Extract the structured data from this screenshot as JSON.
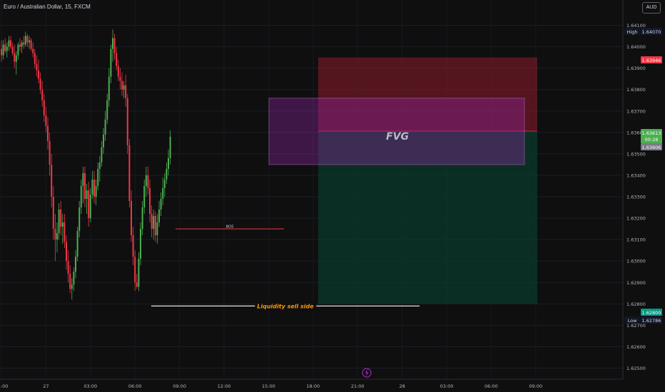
{
  "header": {
    "title": "Euro / Australian Dollar, 15, FXCM",
    "currency": "AUD"
  },
  "annotations": {
    "fvg": "FVG",
    "bos": "BOS",
    "liquidity": "Liquidity sell side"
  },
  "axis_badges": {
    "high_label": "High",
    "high_value": "1.64070",
    "target_value": "1.63946",
    "price_value": "1.63613",
    "countdown": "00:28",
    "entry_value": "1.63606",
    "stop_value": "1.62800",
    "low_label": "Low",
    "low_value": "1.62786"
  },
  "colors": {
    "up": "#4caf50",
    "down": "#f23645",
    "background": "#0f0f10",
    "fvg_zone": "#9c27b0",
    "target_zone": "#8e1b2c",
    "stop_zone": "#0b3a2b",
    "liquidity_text": "#ff9800"
  },
  "chart_data": {
    "type": "candlestick",
    "title": "Euro / Australian Dollar, 15, FXCM",
    "y_ticks": [
      "1.64100",
      "1.64000",
      "1.63900",
      "1.63800",
      "1.63700",
      "1.63600",
      "1.63500",
      "1.63400",
      "1.63300",
      "1.63200",
      "1.63100",
      "1.63000",
      "1.62900",
      "1.62800",
      "1.62700",
      "1.62600",
      "1.62500"
    ],
    "x_ticks": [
      "21:00",
      "27",
      "03:00",
      "06:00",
      "09:00",
      "12:00",
      "15:00",
      "18:00",
      "21:00",
      "28",
      "03:00",
      "06:00",
      "09:00"
    ],
    "ylim": [
      1.625,
      1.6414
    ],
    "x_range_bars": [
      -1,
      340
    ],
    "x_tick_bars": [
      0,
      24,
      48,
      72,
      96,
      120,
      144,
      168,
      192,
      216,
      240,
      264,
      288
    ],
    "candles": [
      [
        1.6399,
        1.6403,
        1.6393,
        1.6396
      ],
      [
        1.6396,
        1.6403,
        1.6394,
        1.6401
      ],
      [
        1.6401,
        1.6404,
        1.6397,
        1.6398
      ],
      [
        1.6398,
        1.6402,
        1.6395,
        1.64
      ],
      [
        1.64,
        1.6405,
        1.6398,
        1.6403
      ],
      [
        1.6403,
        1.6405,
        1.6399,
        1.64
      ],
      [
        1.64,
        1.6402,
        1.6396,
        1.6397
      ],
      [
        1.6397,
        1.6401,
        1.639,
        1.6393
      ],
      [
        1.6393,
        1.6398,
        1.6387,
        1.6396
      ],
      [
        1.6396,
        1.6402,
        1.6394,
        1.6401
      ],
      [
        1.6401,
        1.6404,
        1.6398,
        1.64
      ],
      [
        1.64,
        1.6403,
        1.6397,
        1.6402
      ],
      [
        1.6402,
        1.6405,
        1.6399,
        1.6401
      ],
      [
        1.6401,
        1.6407,
        1.64,
        1.6405
      ],
      [
        1.6405,
        1.6406,
        1.64,
        1.6402
      ],
      [
        1.6402,
        1.6405,
        1.6399,
        1.6403
      ],
      [
        1.6403,
        1.6404,
        1.6398,
        1.6399
      ],
      [
        1.6399,
        1.6402,
        1.6395,
        1.6397
      ],
      [
        1.6397,
        1.6399,
        1.639,
        1.6392
      ],
      [
        1.6392,
        1.6396,
        1.6386,
        1.6389
      ],
      [
        1.6389,
        1.6394,
        1.6383,
        1.6385
      ],
      [
        1.6385,
        1.6388,
        1.6378,
        1.638
      ],
      [
        1.638,
        1.6384,
        1.6372,
        1.6375
      ],
      [
        1.6375,
        1.6378,
        1.6365,
        1.6368
      ],
      [
        1.6368,
        1.6372,
        1.636,
        1.6363
      ],
      [
        1.6363,
        1.6367,
        1.6352,
        1.6356
      ],
      [
        1.6356,
        1.636,
        1.634,
        1.6345
      ],
      [
        1.6345,
        1.635,
        1.6325,
        1.633
      ],
      [
        1.633,
        1.6335,
        1.631,
        1.6315
      ],
      [
        1.6315,
        1.6322,
        1.63,
        1.631
      ],
      [
        1.631,
        1.6318,
        1.6304,
        1.6313
      ],
      [
        1.6313,
        1.6327,
        1.631,
        1.6324
      ],
      [
        1.6324,
        1.6328,
        1.6312,
        1.6316
      ],
      [
        1.6316,
        1.6322,
        1.6308,
        1.6318
      ],
      [
        1.6318,
        1.6322,
        1.6306,
        1.6309
      ],
      [
        1.6309,
        1.6312,
        1.6296,
        1.63
      ],
      [
        1.63,
        1.6305,
        1.629,
        1.6294
      ],
      [
        1.6294,
        1.6298,
        1.6285,
        1.6287
      ],
      [
        1.6287,
        1.6292,
        1.6282,
        1.6289
      ],
      [
        1.6289,
        1.6297,
        1.6286,
        1.6295
      ],
      [
        1.6295,
        1.6305,
        1.6292,
        1.6302
      ],
      [
        1.6302,
        1.6316,
        1.63,
        1.6314
      ],
      [
        1.6314,
        1.6328,
        1.6311,
        1.6325
      ],
      [
        1.6325,
        1.6338,
        1.6322,
        1.6335
      ],
      [
        1.6335,
        1.6344,
        1.6327,
        1.6341
      ],
      [
        1.6341,
        1.6344,
        1.6325,
        1.6329
      ],
      [
        1.6329,
        1.6336,
        1.6322,
        1.6333
      ],
      [
        1.6333,
        1.6337,
        1.6316,
        1.632
      ],
      [
        1.632,
        1.6334,
        1.6318,
        1.6331
      ],
      [
        1.6331,
        1.6342,
        1.6329,
        1.6338
      ],
      [
        1.6338,
        1.6342,
        1.6327,
        1.633
      ],
      [
        1.633,
        1.6338,
        1.6326,
        1.6335
      ],
      [
        1.6335,
        1.6346,
        1.6333,
        1.6343
      ],
      [
        1.6343,
        1.6349,
        1.6337,
        1.6346
      ],
      [
        1.6346,
        1.6356,
        1.6344,
        1.6353
      ],
      [
        1.6353,
        1.6362,
        1.635,
        1.6359
      ],
      [
        1.6359,
        1.637,
        1.6356,
        1.6366
      ],
      [
        1.6366,
        1.6378,
        1.6364,
        1.6375
      ],
      [
        1.6375,
        1.639,
        1.6372,
        1.6386
      ],
      [
        1.6386,
        1.6401,
        1.6383,
        1.6399
      ],
      [
        1.6399,
        1.6408,
        1.6393,
        1.6404
      ],
      [
        1.6404,
        1.6406,
        1.6394,
        1.6397
      ],
      [
        1.6397,
        1.64,
        1.6389,
        1.6391
      ],
      [
        1.6391,
        1.6394,
        1.6384,
        1.6386
      ],
      [
        1.6386,
        1.639,
        1.638,
        1.6384
      ],
      [
        1.6384,
        1.6388,
        1.6377,
        1.638
      ],
      [
        1.638,
        1.6384,
        1.6376,
        1.6382
      ],
      [
        1.6382,
        1.6387,
        1.6372,
        1.6376
      ],
      [
        1.6376,
        1.6378,
        1.635,
        1.6354
      ],
      [
        1.6354,
        1.6357,
        1.6325,
        1.6328
      ],
      [
        1.6328,
        1.6333,
        1.6309,
        1.6312
      ],
      [
        1.6312,
        1.6316,
        1.6298,
        1.6302
      ],
      [
        1.6302,
        1.6305,
        1.6286,
        1.629
      ],
      [
        1.629,
        1.6294,
        1.6287,
        1.6288
      ],
      [
        1.6288,
        1.6304,
        1.6286,
        1.6301
      ],
      [
        1.6301,
        1.6318,
        1.6298,
        1.6315
      ],
      [
        1.6315,
        1.6328,
        1.6312,
        1.6325
      ],
      [
        1.6325,
        1.6338,
        1.6322,
        1.6335
      ],
      [
        1.6335,
        1.6344,
        1.633,
        1.634
      ],
      [
        1.634,
        1.6344,
        1.6331,
        1.6334
      ],
      [
        1.6334,
        1.6338,
        1.6318,
        1.6322
      ],
      [
        1.6322,
        1.6326,
        1.6311,
        1.6315
      ],
      [
        1.6315,
        1.6324,
        1.631,
        1.6321
      ],
      [
        1.6321,
        1.6323,
        1.6309,
        1.6312
      ],
      [
        1.6312,
        1.6322,
        1.6308,
        1.6318
      ],
      [
        1.6318,
        1.6328,
        1.6316,
        1.6324
      ],
      [
        1.6324,
        1.6332,
        1.6321,
        1.6329
      ],
      [
        1.6329,
        1.6339,
        1.6326,
        1.6334
      ],
      [
        1.6334,
        1.6341,
        1.633,
        1.6338
      ],
      [
        1.6338,
        1.6346,
        1.6336,
        1.6343
      ],
      [
        1.6343,
        1.6352,
        1.634,
        1.6348
      ],
      [
        1.6348,
        1.6361,
        1.6345,
        1.6358
      ]
    ],
    "zones": {
      "fvg": {
        "high": 1.6376,
        "low": 1.6345
      },
      "target": {
        "high": 1.6395,
        "low": 1.63606
      },
      "stop": {
        "high": 1.63606,
        "low": 1.628
      }
    }
  }
}
